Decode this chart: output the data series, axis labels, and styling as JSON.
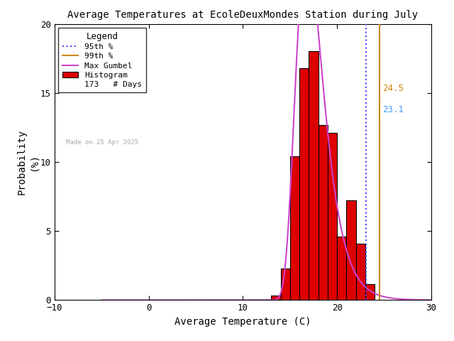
{
  "title": "Average Temperatures at EcoleDeuxMondes Station during July",
  "xlabel": "Average Temperature (C)",
  "ylabel": "Probability\n(%)",
  "xlim": [
    -10,
    30
  ],
  "ylim": [
    0,
    20
  ],
  "xticks": [
    -10,
    0,
    10,
    20,
    30
  ],
  "yticks": [
    0,
    5,
    10,
    15,
    20
  ],
  "bar_lefts": [
    13,
    14,
    15,
    16,
    17,
    18,
    19,
    20,
    21,
    22,
    23
  ],
  "bar_heights": [
    0.35,
    2.3,
    10.4,
    16.8,
    18.0,
    12.7,
    12.1,
    4.6,
    7.2,
    4.1,
    1.15
  ],
  "bar_color": "#dd0000",
  "bar_edgecolor": "#000000",
  "gumbel_mu": 16.8,
  "gumbel_beta": 1.45,
  "pct95": 23.1,
  "pct99": 24.5,
  "n_days": 173,
  "watermark": "Made on 25 Apr 2025",
  "watermark_color": "#aaaaaa",
  "legend_title": "Legend",
  "line_95_color": "#4444ff",
  "line_99_color": "#cc8800",
  "gumbel_color": "#cc44cc",
  "hist_color": "#dd0000",
  "pct95_label_color": "#4499ff",
  "pct99_label_color": "#cc8800",
  "background_color": "#ffffff"
}
